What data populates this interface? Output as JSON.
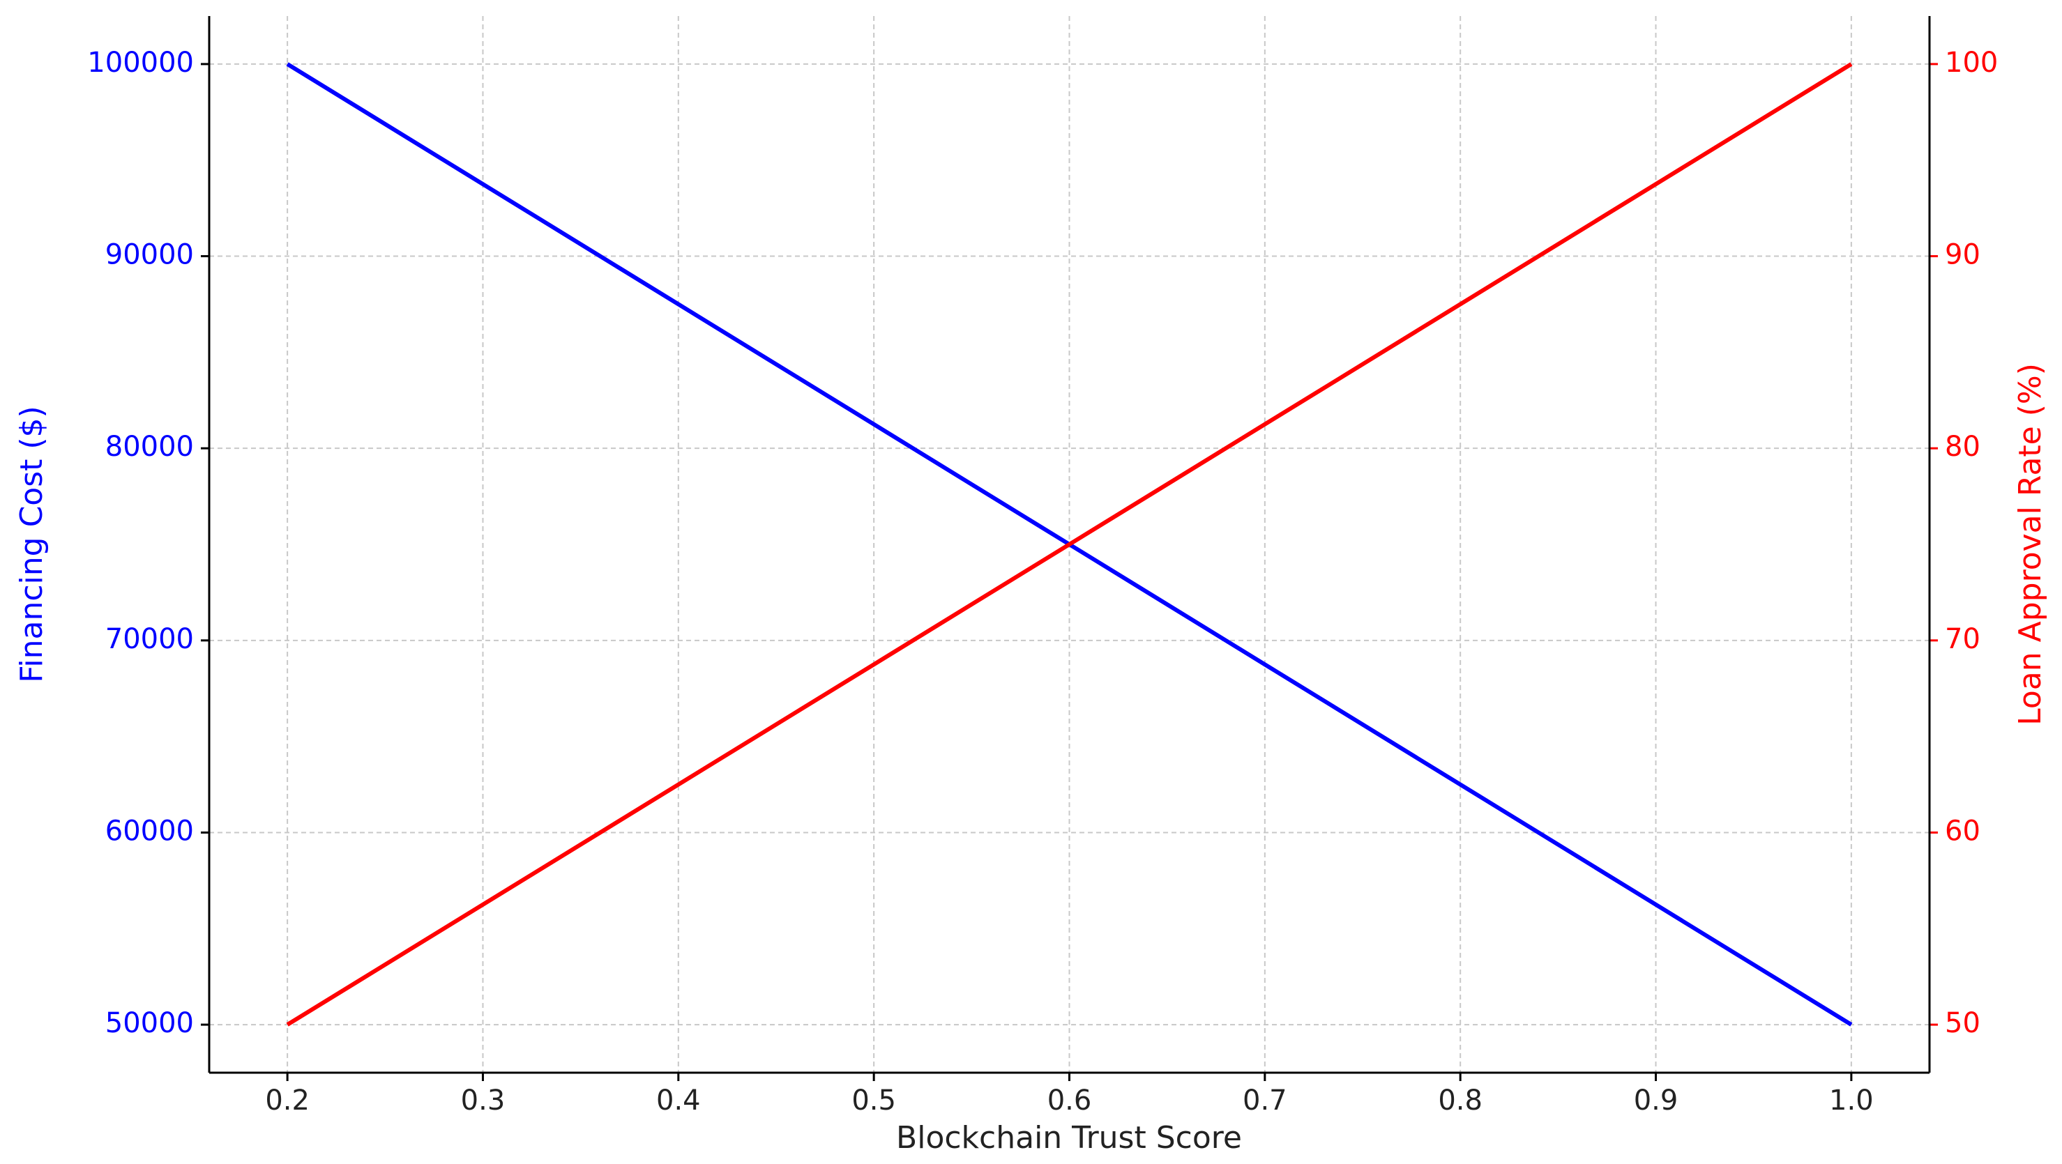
{
  "chart_data": {
    "type": "line",
    "xlabel": "Blockchain Trust Score",
    "ylabel": "Financing Cost ($)",
    "y2label": "Loan Approval Rate (%)",
    "x": [
      0.2,
      0.3,
      0.4,
      0.5,
      0.6,
      0.7,
      0.8,
      0.9,
      1.0
    ],
    "series": [
      {
        "name": "Financing Cost ($)",
        "color": "#0000ff",
        "axis": "y",
        "values": [
          100000,
          93750,
          87500,
          81250,
          75000,
          68750,
          62500,
          56250,
          50000
        ]
      },
      {
        "name": "Loan Approval Rate (%)",
        "color": "#ff0000",
        "axis": "y2",
        "values": [
          50,
          56.25,
          62.5,
          68.75,
          75,
          81.25,
          87.5,
          93.75,
          100
        ]
      }
    ],
    "xlim": [
      0.16,
      1.04
    ],
    "xticks": [
      {
        "value": 0.2,
        "label": "0.2"
      },
      {
        "value": 0.3,
        "label": "0.3"
      },
      {
        "value": 0.4,
        "label": "0.4"
      },
      {
        "value": 0.5,
        "label": "0.5"
      },
      {
        "value": 0.6,
        "label": "0.6"
      },
      {
        "value": 0.7,
        "label": "0.7"
      },
      {
        "value": 0.8,
        "label": "0.8"
      },
      {
        "value": 0.9,
        "label": "0.9"
      },
      {
        "value": 1.0,
        "label": "1.0"
      }
    ],
    "ylim": [
      47500,
      102500
    ],
    "yticks": [
      50000,
      60000,
      70000,
      80000,
      90000,
      100000
    ],
    "y2lim": [
      47.5,
      102.5
    ],
    "y2ticks": [
      50,
      60,
      70,
      80,
      90,
      100
    ],
    "grid": true
  }
}
